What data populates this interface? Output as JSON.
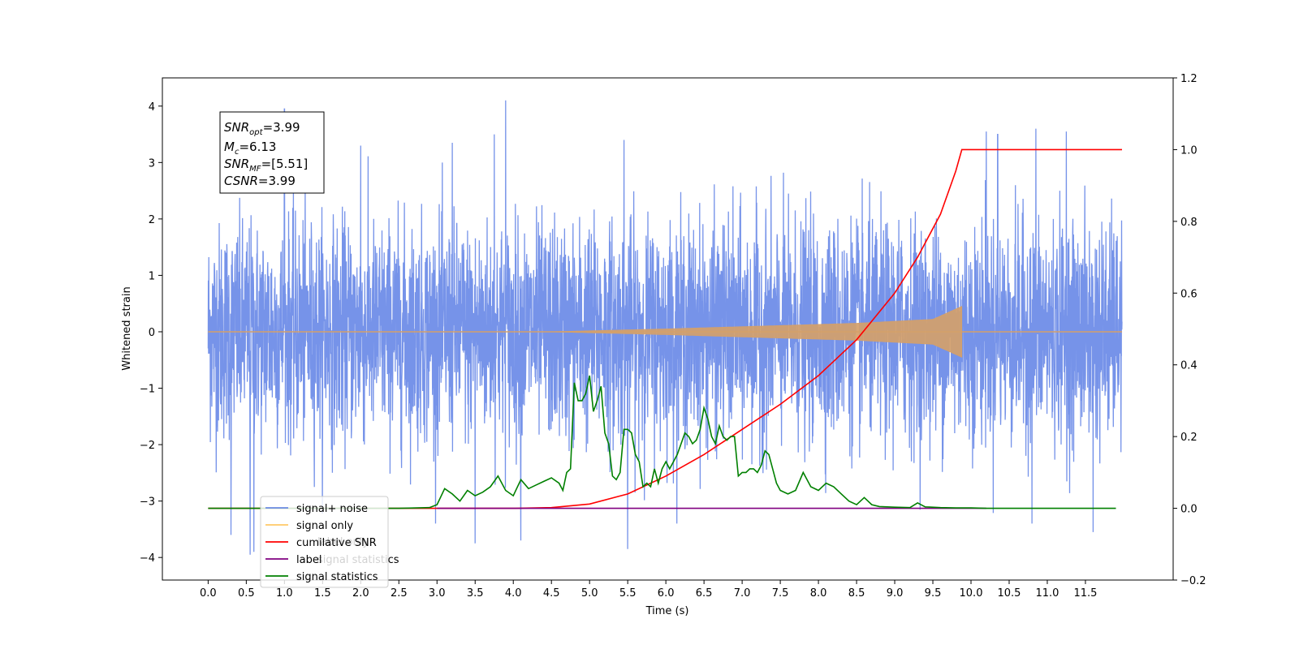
{
  "chart_data": {
    "type": "line",
    "xlabel": "Time (s)",
    "ylabel": "Whitened strain",
    "xlim": [
      -0.6,
      12.65
    ],
    "ylim": [
      -4.4,
      4.5
    ],
    "y2lim": [
      -0.2,
      1.2
    ],
    "x_ticks": [
      "0.0",
      "0.5",
      "1.0",
      "1.5",
      "2.0",
      "2.5",
      "3.0",
      "3.5",
      "4.0",
      "4.5",
      "5.0",
      "5.5",
      "6.0",
      "6.5",
      "7.0",
      "7.5",
      "8.0",
      "8.5",
      "9.0",
      "9.5",
      "10.0",
      "10.5",
      "11.0",
      "11.5"
    ],
    "y_ticks": [
      "−4",
      "−3",
      "−2",
      "−1",
      "0",
      "1",
      "2",
      "3",
      "4"
    ],
    "y2_ticks": [
      "−0.2",
      "0.0",
      "0.2",
      "0.4",
      "0.6",
      "0.8",
      "1.0",
      "1.2"
    ],
    "annotation": {
      "snr_opt": {
        "base": "SNR",
        "sub": "opt",
        "value": "=3.99"
      },
      "mc": {
        "base": "M",
        "sub": "c",
        "value": "=6.13"
      },
      "snr_mf": {
        "base": "SNR",
        "sub": "MF",
        "value": "=[5.51]"
      },
      "csnr": {
        "base": "CSNR",
        "value": "=3.99"
      }
    },
    "legend": {
      "placement": "lower-left",
      "entries": [
        {
          "label": "signal+ noise",
          "color": "#4169e1"
        },
        {
          "label": "signal only",
          "color": "#ffa500"
        },
        {
          "label": "cumilative SNR",
          "color": "#ff0000"
        },
        {
          "label": "label",
          "color": "#800080"
        },
        {
          "label": "signal statistics",
          "color": "#008000"
        }
      ],
      "background_texts": [
        {
          "text": "label only",
          "x": 7.5,
          "y": -3.98
        },
        {
          "text": "signal statistics",
          "x": 11.2,
          "y": -4.25
        }
      ]
    },
    "series": [
      {
        "name": "signal+ noise",
        "axis": "left",
        "color": "#4169e1",
        "description_kind": "noise",
        "t_range": [
          0.0,
          11.98
        ],
        "envelope": {
          "min": -4.0,
          "max": 4.1
        },
        "spikes": [
          {
            "x": 0.3,
            "y": -3.6
          },
          {
            "x": 0.55,
            "y": -3.95
          },
          {
            "x": 0.6,
            "y": -3.9
          },
          {
            "x": 1.0,
            "y": 3.95
          },
          {
            "x": 2.0,
            "y": 3.3
          },
          {
            "x": 3.2,
            "y": 3.35
          },
          {
            "x": 3.5,
            "y": -3.75
          },
          {
            "x": 3.75,
            "y": 3.5
          },
          {
            "x": 3.9,
            "y": 4.1
          },
          {
            "x": 4.1,
            "y": -3.7
          },
          {
            "x": 5.5,
            "y": -3.85
          },
          {
            "x": 5.45,
            "y": 3.4
          },
          {
            "x": 10.2,
            "y": 3.55
          },
          {
            "x": 10.35,
            "y": 3.5
          },
          {
            "x": 10.85,
            "y": 3.6
          },
          {
            "x": 11.25,
            "y": 3.55
          },
          {
            "x": 10.8,
            "y": -3.4
          },
          {
            "x": 11.6,
            "y": -3.55
          }
        ]
      },
      {
        "name": "signal only",
        "axis": "left",
        "color": "#d4a06a",
        "description_kind": "chirp",
        "t_range": [
          0.0,
          11.98
        ],
        "chirp": {
          "start": 4.5,
          "end": 9.88,
          "peak_amp": 0.45,
          "amp_at": [
            [
              6.0,
              0.05
            ],
            [
              8.5,
              0.15
            ],
            [
              9.5,
              0.22
            ],
            [
              9.88,
              0.45
            ]
          ]
        }
      },
      {
        "name": "cumilative SNR",
        "axis": "right",
        "color": "#ff0000",
        "x": [
          0.0,
          4.0,
          4.5,
          5.0,
          5.5,
          6.0,
          6.5,
          7.0,
          7.5,
          8.0,
          8.5,
          9.0,
          9.3,
          9.6,
          9.8,
          9.88,
          11.98
        ],
        "y": [
          0.0,
          0.0,
          0.002,
          0.012,
          0.04,
          0.09,
          0.15,
          0.22,
          0.29,
          0.37,
          0.47,
          0.6,
          0.7,
          0.82,
          0.94,
          1.0,
          1.0
        ]
      },
      {
        "name": "label",
        "axis": "right",
        "color": "#800080",
        "x": [
          3.0,
          10.2
        ],
        "y": [
          0.0,
          0.0
        ]
      },
      {
        "name": "signal statistics",
        "axis": "right",
        "color": "#008000",
        "x": [
          0.0,
          2.5,
          2.9,
          3.0,
          3.1,
          3.2,
          3.3,
          3.4,
          3.5,
          3.6,
          3.7,
          3.8,
          3.9,
          4.0,
          4.1,
          4.2,
          4.3,
          4.4,
          4.5,
          4.6,
          4.65,
          4.7,
          4.75,
          4.8,
          4.85,
          4.9,
          4.95,
          5.0,
          5.05,
          5.1,
          5.15,
          5.2,
          5.25,
          5.3,
          5.35,
          5.4,
          5.45,
          5.5,
          5.55,
          5.6,
          5.65,
          5.7,
          5.75,
          5.8,
          5.85,
          5.9,
          5.95,
          6.0,
          6.05,
          6.1,
          6.15,
          6.2,
          6.25,
          6.3,
          6.35,
          6.4,
          6.45,
          6.5,
          6.55,
          6.6,
          6.65,
          6.7,
          6.75,
          6.8,
          6.85,
          6.9,
          6.95,
          7.0,
          7.05,
          7.1,
          7.15,
          7.2,
          7.25,
          7.3,
          7.35,
          7.4,
          7.45,
          7.5,
          7.6,
          7.7,
          7.8,
          7.9,
          8.0,
          8.1,
          8.2,
          8.3,
          8.4,
          8.5,
          8.6,
          8.7,
          8.8,
          9.0,
          9.2,
          9.3,
          9.4,
          9.6,
          9.8,
          10.0,
          10.2,
          11.0,
          11.9
        ],
        "y": [
          0.0,
          0.0,
          0.002,
          0.01,
          0.055,
          0.04,
          0.02,
          0.05,
          0.035,
          0.045,
          0.06,
          0.09,
          0.05,
          0.035,
          0.08,
          0.055,
          0.065,
          0.075,
          0.085,
          0.07,
          0.05,
          0.1,
          0.11,
          0.35,
          0.3,
          0.3,
          0.32,
          0.37,
          0.27,
          0.3,
          0.34,
          0.21,
          0.18,
          0.09,
          0.08,
          0.1,
          0.22,
          0.22,
          0.21,
          0.15,
          0.13,
          0.06,
          0.07,
          0.06,
          0.11,
          0.07,
          0.11,
          0.13,
          0.11,
          0.13,
          0.15,
          0.18,
          0.21,
          0.2,
          0.18,
          0.19,
          0.22,
          0.28,
          0.25,
          0.2,
          0.18,
          0.23,
          0.2,
          0.19,
          0.2,
          0.2,
          0.09,
          0.1,
          0.1,
          0.11,
          0.11,
          0.1,
          0.12,
          0.16,
          0.15,
          0.11,
          0.07,
          0.05,
          0.04,
          0.05,
          0.1,
          0.06,
          0.05,
          0.07,
          0.06,
          0.04,
          0.02,
          0.01,
          0.03,
          0.01,
          0.005,
          0.003,
          0.002,
          0.015,
          0.004,
          0.002,
          0.001,
          0.001,
          0.0,
          0.0,
          0.0
        ]
      }
    ]
  }
}
